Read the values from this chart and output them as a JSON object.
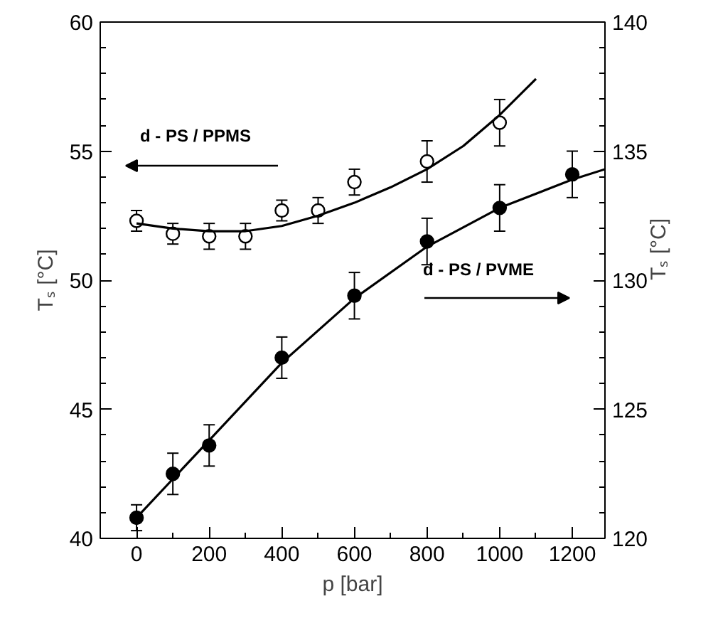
{
  "chart_data": {
    "type": "scatter",
    "xlabel": "p [bar]",
    "ylabel": "Tₛ [°C]",
    "y2label": "Tₛ [°C]",
    "xlim": [
      -100,
      1290
    ],
    "xticks": [
      0,
      200,
      400,
      600,
      800,
      1000,
      1200
    ],
    "ylim": [
      40,
      60
    ],
    "yticks": [
      40,
      45,
      50,
      55,
      60
    ],
    "y2lim": [
      120,
      140
    ],
    "y2ticks": [
      120,
      125,
      130,
      135,
      140
    ],
    "grid": false,
    "series": [
      {
        "type": "scatter",
        "marker": "circle",
        "color": "#ffffff",
        "x": [
          0,
          100,
          200,
          300,
          400,
          500,
          600,
          800,
          1000
        ],
        "values": [
          52.3,
          51.8,
          51.7,
          51.7,
          52.7,
          52.7,
          53.8,
          54.6,
          56.1
        ],
        "errors": [
          0.4,
          0.4,
          0.5,
          0.5,
          0.4,
          0.5,
          0.5,
          0.8,
          0.9
        ]
      },
      {
        "marker": "circle",
        "axis": "y2",
        "color": "#000000",
        "x": [
          0,
          100,
          200,
          400,
          600,
          800,
          1000,
          1200
        ],
        "values": [
          120.8,
          122.5,
          123.6,
          127.0,
          129.4,
          131.5,
          132.8,
          134.1
        ],
        "errors": [
          0.5,
          0.8,
          0.8,
          0.8,
          0.9,
          0.9,
          0.9,
          0.9
        ]
      },
      {
        "type": "line",
        "color": "#000000",
        "x": [
          0,
          100,
          200,
          300,
          400,
          500,
          600,
          700,
          800,
          900,
          1000,
          1100
        ],
        "values": [
          52.2,
          52.0,
          51.9,
          51.9,
          52.1,
          52.5,
          53.0,
          53.6,
          54.3,
          55.2,
          56.4,
          57.8
        ]
      },
      {
        "type": "line",
        "axis": "y2",
        "color": "#000000",
        "x": [
          0,
          100,
          200,
          400,
          600,
          800,
          1000,
          1200,
          1290
        ],
        "values": [
          120.8,
          122.3,
          123.8,
          126.8,
          129.3,
          131.3,
          132.8,
          133.9,
          134.3
        ]
      }
    ],
    "annotations": [
      "d - PS / PPMS",
      "d - PS / PVME"
    ]
  }
}
